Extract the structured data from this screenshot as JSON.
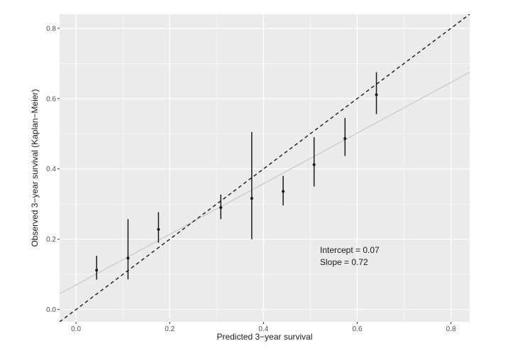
{
  "chart_data": {
    "type": "scatter",
    "title": "",
    "xlabel": "Predicted 3−year survival",
    "ylabel": "Observed 3−year survival (Kaplan−Meier)",
    "xlim": [
      -0.035,
      0.84
    ],
    "ylim": [
      -0.035,
      0.84
    ],
    "x_ticks": [
      0.0,
      0.2,
      0.4,
      0.6,
      0.8
    ],
    "x_tick_labels": [
      "0.0",
      "0.2",
      "0.4",
      "0.6",
      "0.8"
    ],
    "y_ticks": [
      0.0,
      0.2,
      0.4,
      0.6,
      0.8
    ],
    "y_tick_labels": [
      "0.0",
      "0.2",
      "0.4",
      "0.6",
      "0.8"
    ],
    "grid": true,
    "points": [
      {
        "x": 0.044,
        "y": 0.112,
        "lower": 0.085,
        "upper": 0.153
      },
      {
        "x": 0.111,
        "y": 0.146,
        "lower": 0.086,
        "upper": 0.257
      },
      {
        "x": 0.176,
        "y": 0.228,
        "lower": 0.19,
        "upper": 0.277
      },
      {
        "x": 0.309,
        "y": 0.29,
        "lower": 0.257,
        "upper": 0.327
      },
      {
        "x": 0.375,
        "y": 0.316,
        "lower": 0.2,
        "upper": 0.505
      },
      {
        "x": 0.442,
        "y": 0.336,
        "lower": 0.296,
        "upper": 0.38
      },
      {
        "x": 0.508,
        "y": 0.412,
        "lower": 0.35,
        "upper": 0.49
      },
      {
        "x": 0.574,
        "y": 0.486,
        "lower": 0.437,
        "upper": 0.545
      },
      {
        "x": 0.641,
        "y": 0.611,
        "lower": 0.556,
        "upper": 0.675
      }
    ],
    "reference_line": {
      "intercept": 0,
      "slope": 1,
      "style": "dashed",
      "color": "#1a1a1a"
    },
    "fit_line": {
      "intercept": 0.07,
      "slope": 0.72,
      "style": "solid",
      "color": "#c8c8c8"
    },
    "annotations": [
      "Intercept =  0.07",
      "Slope = 0.72"
    ],
    "panel_background": "#ebebeb",
    "grid_color": "#ffffff",
    "point_color": "#1a1a1a"
  }
}
